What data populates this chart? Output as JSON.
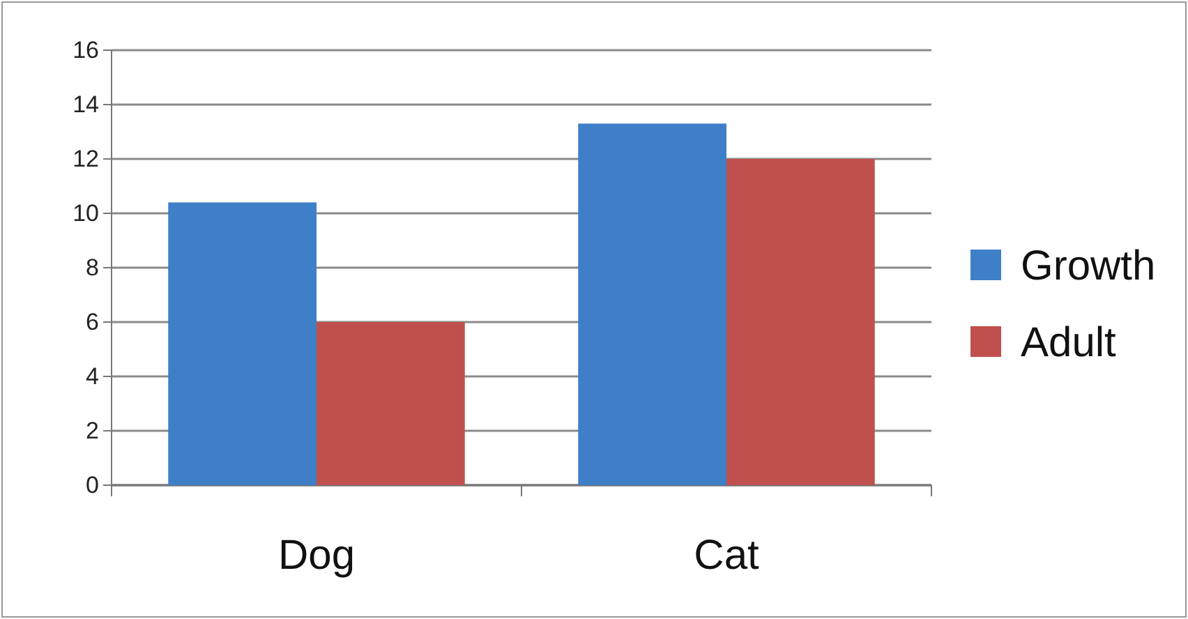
{
  "chart_data": {
    "type": "bar",
    "categories": [
      "Dog",
      "Cat"
    ],
    "series": [
      {
        "name": "Growth",
        "color": "#3f7fc8",
        "values": [
          10.4,
          13.3
        ]
      },
      {
        "name": "Adult",
        "color": "#c0504d",
        "values": [
          6.0,
          12.0
        ]
      }
    ],
    "ylim": [
      0,
      16
    ],
    "yticks": [
      0,
      2,
      4,
      6,
      8,
      10,
      12,
      14,
      16
    ],
    "grid": "y",
    "legend": "right"
  }
}
